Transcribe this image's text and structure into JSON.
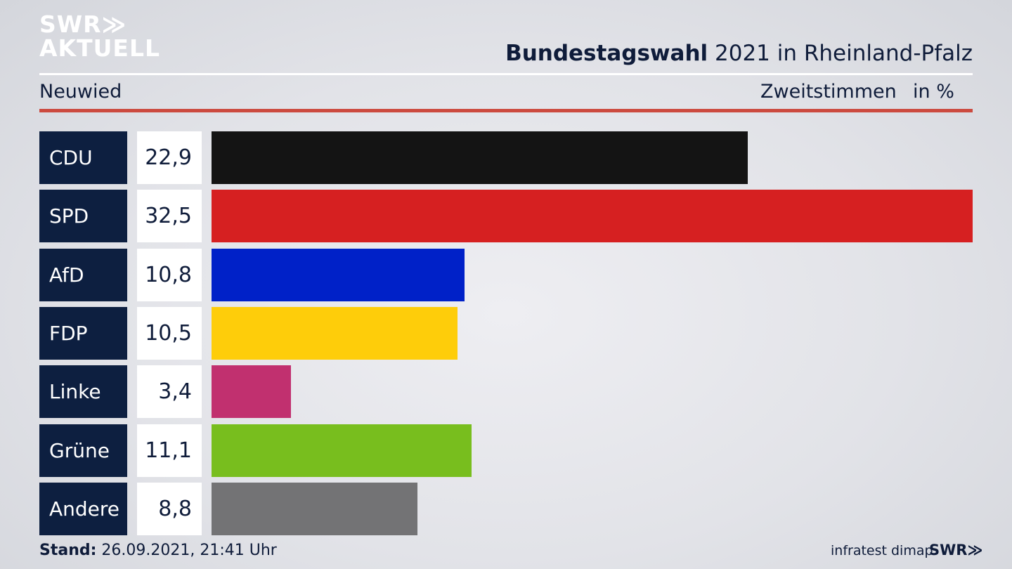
{
  "logo": {
    "line1": "SWR≫",
    "line2": "AKTUELL"
  },
  "header": {
    "title_bold": "Bundestagswahl",
    "title_rest": " 2021 in Rheinland-Pfalz",
    "region": "Neuwied",
    "metric": "Zweitstimmen",
    "unit": "in %"
  },
  "footer": {
    "stand_label": "Stand:",
    "stand_value": " 26.09.2021, 21:41 Uhr",
    "source": "infratest dimap",
    "brand": "SWR≫"
  },
  "chart_data": {
    "type": "bar",
    "orientation": "horizontal",
    "title": "Bundestagswahl 2021 in Rheinland-Pfalz",
    "subtitle": "Neuwied",
    "categories": [
      "CDU",
      "SPD",
      "AfD",
      "FDP",
      "Linke",
      "Grüne",
      "Andere"
    ],
    "values": [
      22.9,
      32.5,
      10.8,
      10.5,
      3.4,
      11.1,
      8.8
    ],
    "value_labels": [
      "22,9",
      "32,5",
      "10,8",
      "10,5",
      "3,4",
      "11,1",
      "8,8"
    ],
    "colors": [
      "#141414",
      "#d62021",
      "#0021c8",
      "#fecd0a",
      "#c1306f",
      "#78be1e",
      "#737375"
    ],
    "xlabel": "Zweitstimmen",
    "unit": "in %",
    "xlim": [
      0,
      32.5
    ],
    "grid": false,
    "legend": "none"
  }
}
